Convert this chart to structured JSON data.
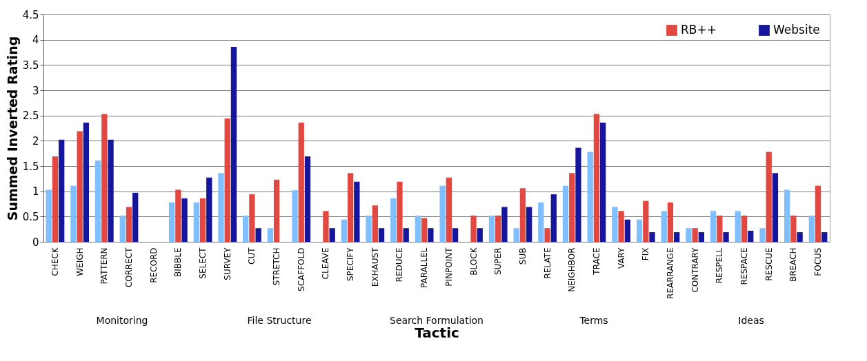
{
  "chart_data": {
    "type": "bar",
    "xlabel": "Tactic",
    "ylabel": "Summed Inverted Rating",
    "categories": [
      "CHECK",
      "WEIGH",
      "PATTERN",
      "CORRECT",
      "RECORD",
      "BIBBLE",
      "SELECT",
      "SURVEY",
      "CUT",
      "STRETCH",
      "SCAFFOLD",
      "CLEAVE",
      "SPECIFY",
      "EXHAUST",
      "REDUCE",
      "PARALLEL",
      "PINPOINT",
      "BLOCK",
      "SUPER",
      "SUB",
      "RELATE",
      "NEIGHBOR",
      "TRACE",
      "VARY",
      "FIX",
      "REARRANGE",
      "CONTRARY",
      "RESPELL",
      "RESPACE",
      "RESCUE",
      "BREACH",
      "FOCUS"
    ],
    "series": [
      {
        "color": "#7fbfff",
        "values": [
          1.03,
          1.11,
          1.61,
          0.52,
          null,
          0.78,
          0.78,
          1.36,
          0.52,
          0.27,
          1.02,
          null,
          0.44,
          0.52,
          0.86,
          0.52,
          1.11,
          null,
          0.52,
          0.27,
          0.78,
          1.11,
          1.78,
          0.69,
          0.44,
          0.61,
          0.27,
          0.61,
          0.61,
          0.27,
          1.03,
          0.52
        ]
      },
      {
        "name": "RB++",
        "color": "#e04841",
        "values": [
          1.69,
          2.19,
          2.53,
          0.69,
          null,
          1.03,
          0.86,
          2.44,
          0.94,
          1.23,
          2.36,
          0.61,
          1.36,
          0.72,
          1.19,
          0.47,
          1.27,
          0.52,
          0.52,
          1.06,
          0.27,
          1.36,
          2.53,
          0.61,
          0.81,
          0.78,
          0.27,
          0.52,
          0.52,
          1.78,
          0.52,
          1.11
        ]
      },
      {
        "name": "Website",
        "color": "#15169c",
        "values": [
          2.02,
          2.36,
          2.02,
          0.97,
          null,
          0.86,
          1.27,
          3.86,
          0.27,
          null,
          1.69,
          0.27,
          1.19,
          0.27,
          0.27,
          0.27,
          0.27,
          0.27,
          0.69,
          0.69,
          0.94,
          1.86,
          2.36,
          0.44,
          0.19,
          0.19,
          0.19,
          0.19,
          0.22,
          1.36,
          0.19,
          0.19
        ]
      }
    ],
    "annotations": [
      "Monitoring",
      "File Structure",
      "Search Formulation",
      "Terms",
      "Ideas"
    ],
    "ylim": [
      0,
      4.5
    ],
    "yticks": [
      0,
      0.5,
      1,
      1.5,
      2,
      2.5,
      3,
      3.5,
      4,
      4.5
    ],
    "grid": "y",
    "legend": "top right"
  }
}
